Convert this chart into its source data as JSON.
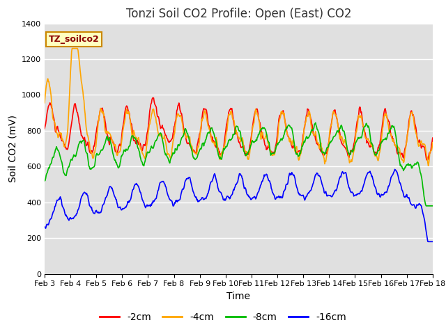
{
  "title": "Tonzi Soil CO2 Profile: Open (East) CO2",
  "ylabel": "Soil CO2 (mV)",
  "xlabel": "Time",
  "legend_label": "TZ_soilco2",
  "series_labels": [
    "-2cm",
    "-4cm",
    "-8cm",
    "-16cm"
  ],
  "series_colors": [
    "#ff0000",
    "#ffa500",
    "#00bb00",
    "#0000ff"
  ],
  "ylim": [
    0,
    1400
  ],
  "background_color": "#e0e0e0",
  "fig_bg_color": "#ffffff",
  "grid_color": "#ffffff",
  "x_tick_labels": [
    "Feb 3",
    "Feb 4",
    "Feb 5",
    "Feb 6",
    "Feb 7",
    "Feb 8",
    "Feb 9",
    "Feb 10",
    "Feb 11",
    "Feb 12",
    "Feb 13",
    "Feb 14",
    "Feb 15",
    "Feb 16",
    "Feb 17",
    "Feb 18"
  ],
  "title_fontsize": 12,
  "axis_label_fontsize": 10,
  "tick_fontsize": 8,
  "legend_fontsize": 10,
  "line_width": 1.2,
  "days": 15
}
